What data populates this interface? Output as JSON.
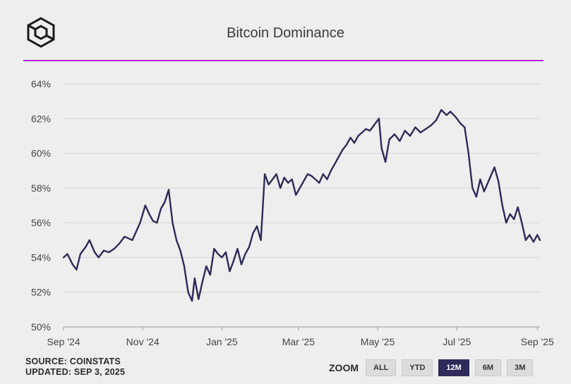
{
  "header": {
    "title": "Bitcoin Dominance",
    "logo_icon": "cube-logo-icon",
    "accent_color": "#b31fd6"
  },
  "footer": {
    "source": "SOURCE: COINSTATS",
    "updated": "UPDATED: SEP 3, 2025"
  },
  "zoom": {
    "label": "ZOOM",
    "buttons": [
      {
        "label": "ALL",
        "active": false
      },
      {
        "label": "YTD",
        "active": false
      },
      {
        "label": "12M",
        "active": true
      },
      {
        "label": "6M",
        "active": false
      },
      {
        "label": "3M",
        "active": false
      }
    ],
    "active_color": "#2e2a59"
  },
  "chart_data": {
    "type": "line",
    "title": "Bitcoin Dominance",
    "xlabel": "",
    "ylabel": "",
    "ylim": [
      50,
      64
    ],
    "yticks": [
      "50%",
      "52%",
      "54%",
      "56%",
      "58%",
      "60%",
      "62%",
      "64%"
    ],
    "xtick_labels": [
      "Sep '24",
      "Nov '24",
      "Jan '25",
      "Mar '25",
      "May '25",
      "Jul '25",
      "Sep '25"
    ],
    "x_start": "2024-09-01",
    "x_end": "2025-09-03",
    "grid": true,
    "line_color": "#2e2a59",
    "series": [
      {
        "name": "",
        "points": [
          [
            "2024-09-01",
            54.0
          ],
          [
            "2024-09-04",
            54.2
          ],
          [
            "2024-09-08",
            53.6
          ],
          [
            "2024-09-11",
            53.3
          ],
          [
            "2024-09-14",
            54.2
          ],
          [
            "2024-09-18",
            54.6
          ],
          [
            "2024-09-21",
            55.0
          ],
          [
            "2024-09-25",
            54.3
          ],
          [
            "2024-09-28",
            54.0
          ],
          [
            "2024-10-02",
            54.4
          ],
          [
            "2024-10-06",
            54.3
          ],
          [
            "2024-10-10",
            54.5
          ],
          [
            "2024-10-14",
            54.8
          ],
          [
            "2024-10-18",
            55.2
          ],
          [
            "2024-10-21",
            55.1
          ],
          [
            "2024-10-24",
            55.0
          ],
          [
            "2024-10-27",
            55.5
          ],
          [
            "2024-10-30",
            56.0
          ],
          [
            "2024-11-03",
            57.0
          ],
          [
            "2024-11-06",
            56.5
          ],
          [
            "2024-11-09",
            56.1
          ],
          [
            "2024-11-12",
            56.0
          ],
          [
            "2024-11-15",
            56.8
          ],
          [
            "2024-11-18",
            57.2
          ],
          [
            "2024-11-21",
            57.9
          ],
          [
            "2024-11-24",
            56.0
          ],
          [
            "2024-11-27",
            55.0
          ],
          [
            "2024-11-30",
            54.4
          ],
          [
            "2024-12-03",
            53.5
          ],
          [
            "2024-12-06",
            52.0
          ],
          [
            "2024-12-09",
            51.5
          ],
          [
            "2024-12-11",
            52.8
          ],
          [
            "2024-12-14",
            51.6
          ],
          [
            "2024-12-17",
            52.6
          ],
          [
            "2024-12-20",
            53.5
          ],
          [
            "2024-12-23",
            53.0
          ],
          [
            "2024-12-26",
            54.5
          ],
          [
            "2024-12-29",
            54.2
          ],
          [
            "2025-01-01",
            54.0
          ],
          [
            "2025-01-04",
            54.3
          ],
          [
            "2025-01-07",
            53.2
          ],
          [
            "2025-01-10",
            53.8
          ],
          [
            "2025-01-13",
            54.5
          ],
          [
            "2025-01-16",
            53.6
          ],
          [
            "2025-01-19",
            54.2
          ],
          [
            "2025-01-22",
            54.6
          ],
          [
            "2025-01-25",
            55.4
          ],
          [
            "2025-01-28",
            55.8
          ],
          [
            "2025-01-31",
            55.0
          ],
          [
            "2025-02-03",
            58.8
          ],
          [
            "2025-02-06",
            58.2
          ],
          [
            "2025-02-09",
            58.5
          ],
          [
            "2025-02-12",
            58.8
          ],
          [
            "2025-02-15",
            58.0
          ],
          [
            "2025-02-18",
            58.6
          ],
          [
            "2025-02-21",
            58.3
          ],
          [
            "2025-02-24",
            58.5
          ],
          [
            "2025-02-27",
            57.6
          ],
          [
            "2025-03-02",
            58.0
          ],
          [
            "2025-03-05",
            58.4
          ],
          [
            "2025-03-08",
            58.8
          ],
          [
            "2025-03-11",
            58.7
          ],
          [
            "2025-03-14",
            58.5
          ],
          [
            "2025-03-17",
            58.3
          ],
          [
            "2025-03-20",
            58.8
          ],
          [
            "2025-03-23",
            58.5
          ],
          [
            "2025-03-26",
            59.0
          ],
          [
            "2025-03-29",
            59.4
          ],
          [
            "2025-04-01",
            59.8
          ],
          [
            "2025-04-04",
            60.2
          ],
          [
            "2025-04-07",
            60.5
          ],
          [
            "2025-04-10",
            60.9
          ],
          [
            "2025-04-13",
            60.6
          ],
          [
            "2025-04-16",
            61.0
          ],
          [
            "2025-04-19",
            61.2
          ],
          [
            "2025-04-22",
            61.4
          ],
          [
            "2025-04-25",
            61.3
          ],
          [
            "2025-04-28",
            61.6
          ],
          [
            "2025-05-02",
            62.0
          ],
          [
            "2025-05-04",
            60.3
          ],
          [
            "2025-05-07",
            59.5
          ],
          [
            "2025-05-10",
            60.8
          ],
          [
            "2025-05-14",
            61.1
          ],
          [
            "2025-05-18",
            60.7
          ],
          [
            "2025-05-22",
            61.3
          ],
          [
            "2025-05-26",
            61.0
          ],
          [
            "2025-05-30",
            61.5
          ],
          [
            "2025-06-03",
            61.2
          ],
          [
            "2025-06-07",
            61.4
          ],
          [
            "2025-06-11",
            61.6
          ],
          [
            "2025-06-15",
            61.9
          ],
          [
            "2025-06-19",
            62.5
          ],
          [
            "2025-06-23",
            62.2
          ],
          [
            "2025-06-26",
            62.4
          ],
          [
            "2025-06-30",
            62.1
          ],
          [
            "2025-07-04",
            61.7
          ],
          [
            "2025-07-07",
            61.5
          ],
          [
            "2025-07-10",
            60.0
          ],
          [
            "2025-07-13",
            58.0
          ],
          [
            "2025-07-16",
            57.5
          ],
          [
            "2025-07-19",
            58.5
          ],
          [
            "2025-07-22",
            57.8
          ],
          [
            "2025-07-26",
            58.5
          ],
          [
            "2025-07-30",
            59.2
          ],
          [
            "2025-08-02",
            58.4
          ],
          [
            "2025-08-05",
            57.0
          ],
          [
            "2025-08-08",
            56.0
          ],
          [
            "2025-08-11",
            56.5
          ],
          [
            "2025-08-14",
            56.2
          ],
          [
            "2025-08-17",
            56.9
          ],
          [
            "2025-08-20",
            56.0
          ],
          [
            "2025-08-23",
            55.0
          ],
          [
            "2025-08-26",
            55.3
          ],
          [
            "2025-08-29",
            54.9
          ],
          [
            "2025-09-01",
            55.3
          ],
          [
            "2025-09-03",
            55.0
          ]
        ]
      }
    ]
  }
}
